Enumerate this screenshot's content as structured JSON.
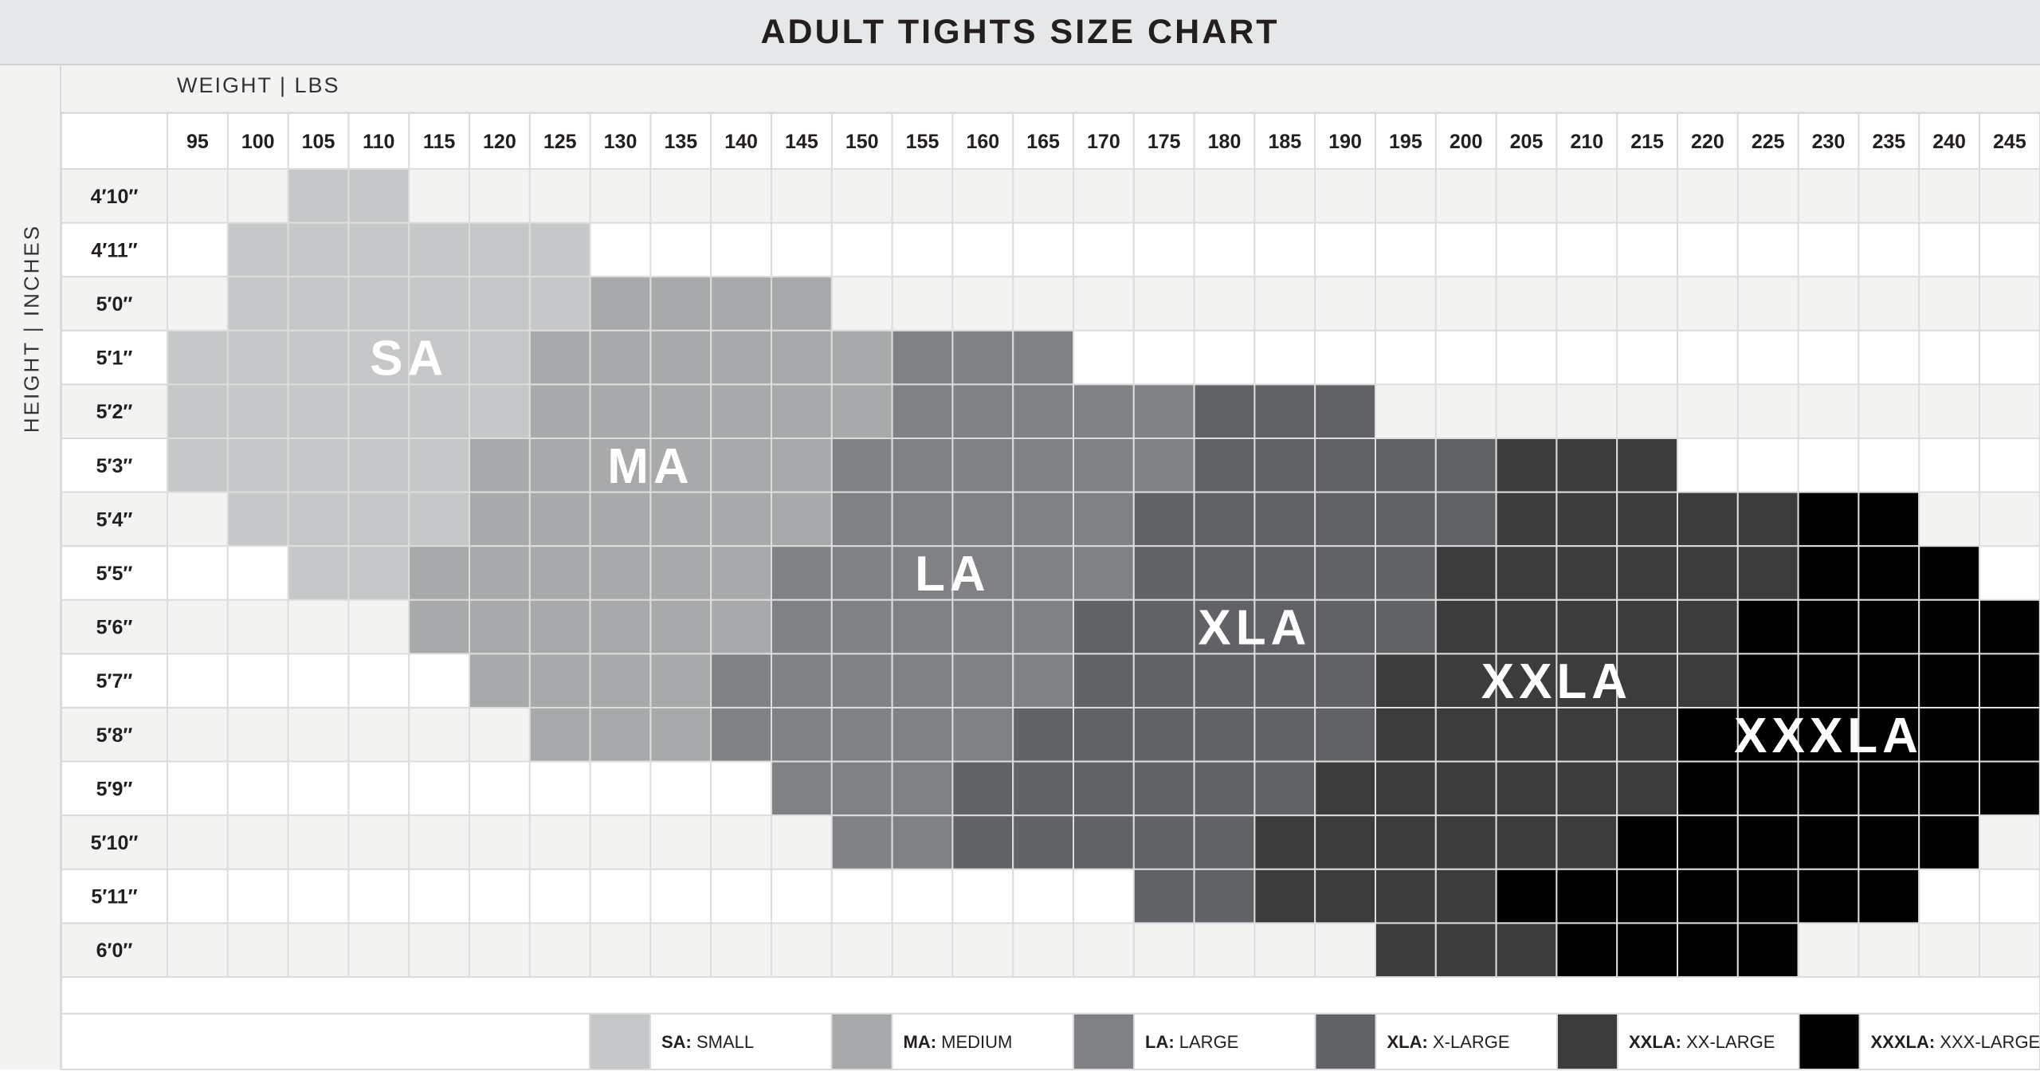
{
  "chart_data": {
    "type": "heatmap",
    "title": "ADULT TIGHTS SIZE CHART",
    "xlabel": "WEIGHT | LBS",
    "ylabel": "HEIGHT | INCHES",
    "x": [
      95,
      100,
      105,
      110,
      115,
      120,
      125,
      130,
      135,
      140,
      145,
      150,
      155,
      160,
      165,
      170,
      175,
      180,
      185,
      190,
      195,
      200,
      205,
      210,
      215,
      220,
      225,
      230,
      235,
      240,
      245
    ],
    "y": [
      "4′10″",
      "4′11″",
      "5′0″",
      "5′1″",
      "5′2″",
      "5′3″",
      "5′4″",
      "5′5″",
      "5′6″",
      "5′7″",
      "5′8″",
      "5′9″",
      "5′10″",
      "5′11″",
      "6′0″"
    ],
    "sizes": [
      {
        "code": "SA",
        "name": "SMALL",
        "color": "#c6c7c8"
      },
      {
        "code": "MA",
        "name": "MEDIUM",
        "color": "#a8a9ab"
      },
      {
        "code": "LA",
        "name": "LARGE",
        "color": "#808184"
      },
      {
        "code": "XLA",
        "name": "X-LARGE",
        "color": "#616266"
      },
      {
        "code": "XXLA",
        "name": "XX-LARGE",
        "color": "#3c3c3d"
      },
      {
        "code": "XXXLA",
        "name": "XXX-LARGE",
        "color": "#000000"
      }
    ],
    "rows": [
      {
        "height": "4′10″",
        "ranges": [
          {
            "size": "SA",
            "from": 105,
            "to": 110
          }
        ]
      },
      {
        "height": "4′11″",
        "ranges": [
          {
            "size": "SA",
            "from": 100,
            "to": 125
          }
        ]
      },
      {
        "height": "5′0″",
        "ranges": [
          {
            "size": "SA",
            "from": 100,
            "to": 125
          },
          {
            "size": "MA",
            "from": 130,
            "to": 145
          }
        ]
      },
      {
        "height": "5′1″",
        "ranges": [
          {
            "size": "SA",
            "from": 95,
            "to": 120
          },
          {
            "size": "MA",
            "from": 125,
            "to": 150
          },
          {
            "size": "LA",
            "from": 155,
            "to": 165
          }
        ]
      },
      {
        "height": "5′2″",
        "ranges": [
          {
            "size": "SA",
            "from": 95,
            "to": 120
          },
          {
            "size": "MA",
            "from": 125,
            "to": 150
          },
          {
            "size": "LA",
            "from": 155,
            "to": 175
          },
          {
            "size": "XLA",
            "from": 180,
            "to": 190
          }
        ]
      },
      {
        "height": "5′3″",
        "ranges": [
          {
            "size": "SA",
            "from": 95,
            "to": 115
          },
          {
            "size": "MA",
            "from": 120,
            "to": 145
          },
          {
            "size": "LA",
            "from": 150,
            "to": 175
          },
          {
            "size": "XLA",
            "from": 180,
            "to": 200
          },
          {
            "size": "XXLA",
            "from": 205,
            "to": 215
          }
        ]
      },
      {
        "height": "5′4″",
        "ranges": [
          {
            "size": "SA",
            "from": 100,
            "to": 115
          },
          {
            "size": "MA",
            "from": 120,
            "to": 145
          },
          {
            "size": "LA",
            "from": 150,
            "to": 170
          },
          {
            "size": "XLA",
            "from": 175,
            "to": 200
          },
          {
            "size": "XXLA",
            "from": 205,
            "to": 225
          },
          {
            "size": "XXXLA",
            "from": 230,
            "to": 235
          }
        ]
      },
      {
        "height": "5′5″",
        "ranges": [
          {
            "size": "SA",
            "from": 105,
            "to": 110
          },
          {
            "size": "MA",
            "from": 115,
            "to": 140
          },
          {
            "size": "LA",
            "from": 145,
            "to": 170
          },
          {
            "size": "XLA",
            "from": 175,
            "to": 195
          },
          {
            "size": "XXLA",
            "from": 200,
            "to": 225
          },
          {
            "size": "XXXLA",
            "from": 230,
            "to": 240
          }
        ]
      },
      {
        "height": "5′6″",
        "ranges": [
          {
            "size": "MA",
            "from": 115,
            "to": 140
          },
          {
            "size": "LA",
            "from": 145,
            "to": 165
          },
          {
            "size": "XLA",
            "from": 170,
            "to": 195
          },
          {
            "size": "XXLA",
            "from": 200,
            "to": 220
          },
          {
            "size": "XXXLA",
            "from": 225,
            "to": 245
          }
        ]
      },
      {
        "height": "5′7″",
        "ranges": [
          {
            "size": "MA",
            "from": 120,
            "to": 135
          },
          {
            "size": "LA",
            "from": 140,
            "to": 165
          },
          {
            "size": "XLA",
            "from": 170,
            "to": 190
          },
          {
            "size": "XXLA",
            "from": 195,
            "to": 220
          },
          {
            "size": "XXXLA",
            "from": 225,
            "to": 245
          }
        ]
      },
      {
        "height": "5′8″",
        "ranges": [
          {
            "size": "MA",
            "from": 125,
            "to": 135
          },
          {
            "size": "LA",
            "from": 140,
            "to": 160
          },
          {
            "size": "XLA",
            "from": 165,
            "to": 190
          },
          {
            "size": "XXLA",
            "from": 195,
            "to": 215
          },
          {
            "size": "XXXLA",
            "from": 220,
            "to": 245
          }
        ]
      },
      {
        "height": "5′9″",
        "ranges": [
          {
            "size": "LA",
            "from": 145,
            "to": 155
          },
          {
            "size": "XLA",
            "from": 160,
            "to": 185
          },
          {
            "size": "XXLA",
            "from": 190,
            "to": 215
          },
          {
            "size": "XXXLA",
            "from": 220,
            "to": 245
          }
        ]
      },
      {
        "height": "5′10″",
        "ranges": [
          {
            "size": "LA",
            "from": 150,
            "to": 155
          },
          {
            "size": "XLA",
            "from": 160,
            "to": 180
          },
          {
            "size": "XXLA",
            "from": 185,
            "to": 210
          },
          {
            "size": "XXXLA",
            "from": 215,
            "to": 240
          }
        ]
      },
      {
        "height": "5′11″",
        "ranges": [
          {
            "size": "XLA",
            "from": 175,
            "to": 180
          },
          {
            "size": "XXLA",
            "from": 185,
            "to": 200
          },
          {
            "size": "XXXLA",
            "from": 205,
            "to": 235
          }
        ]
      },
      {
        "height": "6′0″",
        "ranges": [
          {
            "size": "XXLA",
            "from": 195,
            "to": 205
          },
          {
            "size": "XXXLA",
            "from": 210,
            "to": 225
          }
        ]
      }
    ],
    "zone_labels": [
      {
        "text": "SA",
        "x": 112.5,
        "y": "5′1″"
      },
      {
        "text": "MA",
        "x": 132.5,
        "y": "5′3″"
      },
      {
        "text": "LA",
        "x": 157.5,
        "y": "5′5″"
      },
      {
        "text": "XLA",
        "x": 182.5,
        "y": "5′6″"
      },
      {
        "text": "XXLA",
        "x": 207.5,
        "y": "5′7″"
      },
      {
        "text": "XXXLA",
        "x": 230,
        "y": "5′8″"
      }
    ]
  }
}
